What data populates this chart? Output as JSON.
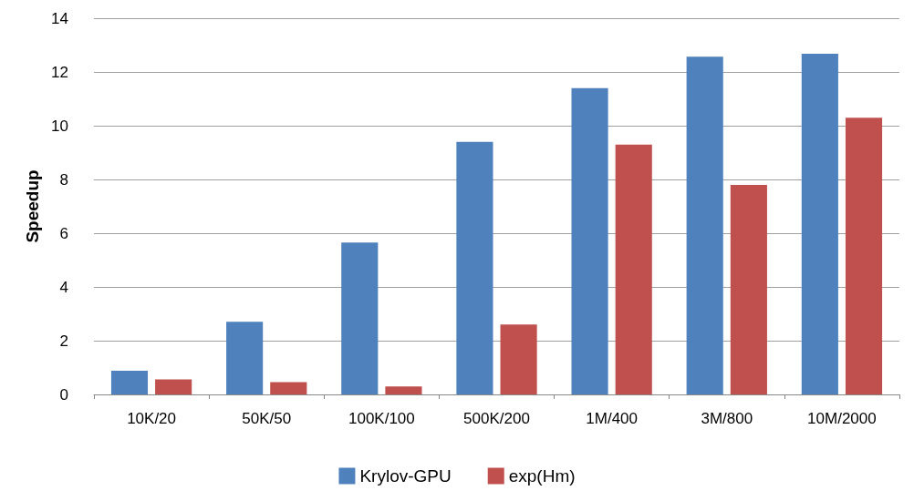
{
  "chart_data": {
    "type": "bar",
    "ylabel": "Speedup",
    "categories": [
      "10K/20",
      "50K/50",
      "100K/100",
      "500K/200",
      "1M/400",
      "3M/800",
      "10M/2000"
    ],
    "series": [
      {
        "name": "Krylov-GPU",
        "color": "#4f81bd",
        "values": [
          0.88,
          2.7,
          5.65,
          9.4,
          11.4,
          12.57,
          12.68
        ]
      },
      {
        "name": "exp(Hm)",
        "color": "#c0504d",
        "values": [
          0.56,
          0.46,
          0.3,
          2.6,
          9.3,
          7.8,
          10.3
        ]
      }
    ],
    "ylim": [
      0,
      14
    ],
    "yticks": [
      0,
      2,
      4,
      6,
      8,
      10,
      12,
      14
    ],
    "grid": "y",
    "legend": "bottom"
  }
}
